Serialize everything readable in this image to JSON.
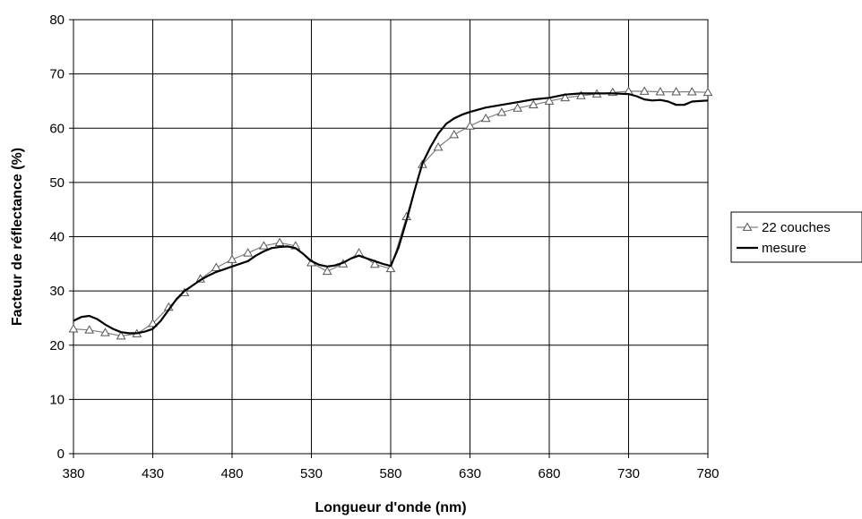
{
  "chart_data": {
    "type": "line",
    "title": "",
    "xlabel": "Longueur d'onde (nm)",
    "ylabel": "Facteur de réflectance (%)",
    "xlim": [
      380,
      780
    ],
    "ylim": [
      0,
      80
    ],
    "x_ticks": [
      "380",
      "430",
      "480",
      "530",
      "580",
      "630",
      "680",
      "730",
      "780"
    ],
    "y_ticks": [
      "0",
      "10",
      "20",
      "30",
      "40",
      "50",
      "60",
      "70",
      "80"
    ],
    "grid": true,
    "legend_position": "right",
    "series": [
      {
        "name": "22 couches",
        "color": "#808080",
        "marker": "triangle",
        "x": [
          380,
          390,
          400,
          410,
          420,
          430,
          440,
          450,
          460,
          470,
          480,
          490,
          500,
          510,
          520,
          530,
          540,
          550,
          560,
          570,
          580,
          590,
          600,
          610,
          620,
          630,
          640,
          650,
          660,
          670,
          680,
          690,
          700,
          710,
          720,
          730,
          740,
          750,
          760,
          770,
          780
        ],
        "values": [
          23.0,
          22.8,
          22.3,
          21.7,
          22.1,
          24.0,
          27.0,
          29.7,
          32.2,
          34.3,
          35.8,
          37.0,
          38.3,
          38.9,
          38.3,
          35.2,
          33.6,
          35.0,
          37.0,
          34.9,
          34.1,
          43.7,
          53.3,
          56.5,
          58.8,
          60.4,
          61.8,
          62.9,
          63.7,
          64.3,
          65.0,
          65.6,
          66.0,
          66.3,
          66.6,
          66.8,
          66.8,
          66.7,
          66.7,
          66.7,
          66.6
        ]
      },
      {
        "name": "mesure",
        "color": "#000000",
        "marker": "none",
        "x": [
          380,
          385,
          390,
          395,
          400,
          405,
          410,
          415,
          420,
          425,
          430,
          435,
          440,
          445,
          450,
          455,
          460,
          465,
          470,
          475,
          480,
          485,
          490,
          495,
          500,
          505,
          510,
          515,
          520,
          525,
          530,
          535,
          540,
          545,
          550,
          555,
          560,
          565,
          570,
          575,
          580,
          585,
          590,
          595,
          600,
          605,
          610,
          615,
          620,
          625,
          630,
          640,
          650,
          660,
          670,
          680,
          690,
          700,
          710,
          720,
          730,
          735,
          740,
          745,
          750,
          755,
          760,
          765,
          770,
          775,
          780
        ],
        "values": [
          24.5,
          25.2,
          25.4,
          24.8,
          23.8,
          23.0,
          22.4,
          22.2,
          22.2,
          22.5,
          23.0,
          24.5,
          26.5,
          28.5,
          30.0,
          31.0,
          32.0,
          32.8,
          33.5,
          34.0,
          34.5,
          35.0,
          35.5,
          36.5,
          37.3,
          37.9,
          38.1,
          38.2,
          37.9,
          36.8,
          35.5,
          34.8,
          34.5,
          34.7,
          35.2,
          36.0,
          36.5,
          36.0,
          35.5,
          35.0,
          34.6,
          38.0,
          43.0,
          48.5,
          53.5,
          56.5,
          59.0,
          60.8,
          61.8,
          62.5,
          63.0,
          63.8,
          64.3,
          64.8,
          65.3,
          65.6,
          66.2,
          66.4,
          66.4,
          66.4,
          66.3,
          65.9,
          65.3,
          65.1,
          65.2,
          64.9,
          64.3,
          64.3,
          64.9,
          65.0,
          65.1
        ]
      }
    ]
  }
}
